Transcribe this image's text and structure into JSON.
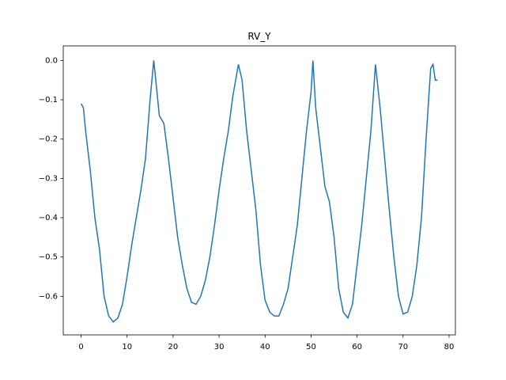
{
  "chart_data": {
    "type": "line",
    "title": "RV_Y",
    "x": [
      0,
      0.5,
      1,
      2,
      3,
      4,
      5,
      6,
      7,
      8,
      9,
      10,
      11,
      12,
      13,
      14,
      15,
      15.8,
      16.5,
      17,
      18,
      19,
      20,
      21,
      22,
      23,
      24,
      25,
      26,
      27,
      28,
      29,
      30,
      31,
      32,
      33,
      34.2,
      35,
      36,
      37,
      38,
      39,
      40,
      41,
      42,
      43,
      44,
      45,
      46,
      47,
      48,
      49,
      50,
      50.4,
      51,
      52,
      53,
      54,
      55,
      56,
      57,
      58,
      59,
      60,
      61,
      62,
      63,
      64,
      65,
      66,
      67,
      68,
      69,
      70,
      71,
      72,
      73,
      74,
      75,
      76,
      76.5,
      77,
      77.5
    ],
    "series": [
      {
        "name": "RV_Y",
        "color": "#1f77b4",
        "values": [
          -0.11,
          -0.12,
          -0.18,
          -0.28,
          -0.4,
          -0.48,
          -0.6,
          -0.65,
          -0.665,
          -0.655,
          -0.62,
          -0.55,
          -0.47,
          -0.4,
          -0.33,
          -0.25,
          -0.1,
          0.0,
          -0.08,
          -0.14,
          -0.16,
          -0.25,
          -0.35,
          -0.45,
          -0.52,
          -0.58,
          -0.615,
          -0.62,
          -0.6,
          -0.56,
          -0.5,
          -0.42,
          -0.33,
          -0.25,
          -0.18,
          -0.09,
          -0.01,
          -0.05,
          -0.18,
          -0.28,
          -0.38,
          -0.52,
          -0.61,
          -0.64,
          -0.65,
          -0.65,
          -0.62,
          -0.58,
          -0.5,
          -0.42,
          -0.3,
          -0.18,
          -0.08,
          0.0,
          -0.12,
          -0.22,
          -0.32,
          -0.36,
          -0.45,
          -0.58,
          -0.64,
          -0.655,
          -0.62,
          -0.52,
          -0.42,
          -0.3,
          -0.18,
          -0.01,
          -0.12,
          -0.25,
          -0.38,
          -0.5,
          -0.6,
          -0.645,
          -0.64,
          -0.6,
          -0.52,
          -0.4,
          -0.2,
          -0.02,
          -0.01,
          -0.05,
          -0.05
        ]
      }
    ],
    "xlim": [
      -3.875,
      81.375
    ],
    "xticks": [
      0,
      10,
      20,
      30,
      40,
      50,
      60,
      70,
      80
    ],
    "ylim": [
      -0.698,
      0.037
    ],
    "yticks": [
      {
        "value": -0.6,
        "label": "−0.6"
      },
      {
        "value": -0.5,
        "label": "−0.5"
      },
      {
        "value": -0.4,
        "label": "−0.4"
      },
      {
        "value": -0.3,
        "label": "−0.3"
      },
      {
        "value": -0.2,
        "label": "−0.2"
      },
      {
        "value": -0.1,
        "label": "−0.1"
      },
      {
        "value": 0.0,
        "label": "0.0"
      }
    ]
  }
}
